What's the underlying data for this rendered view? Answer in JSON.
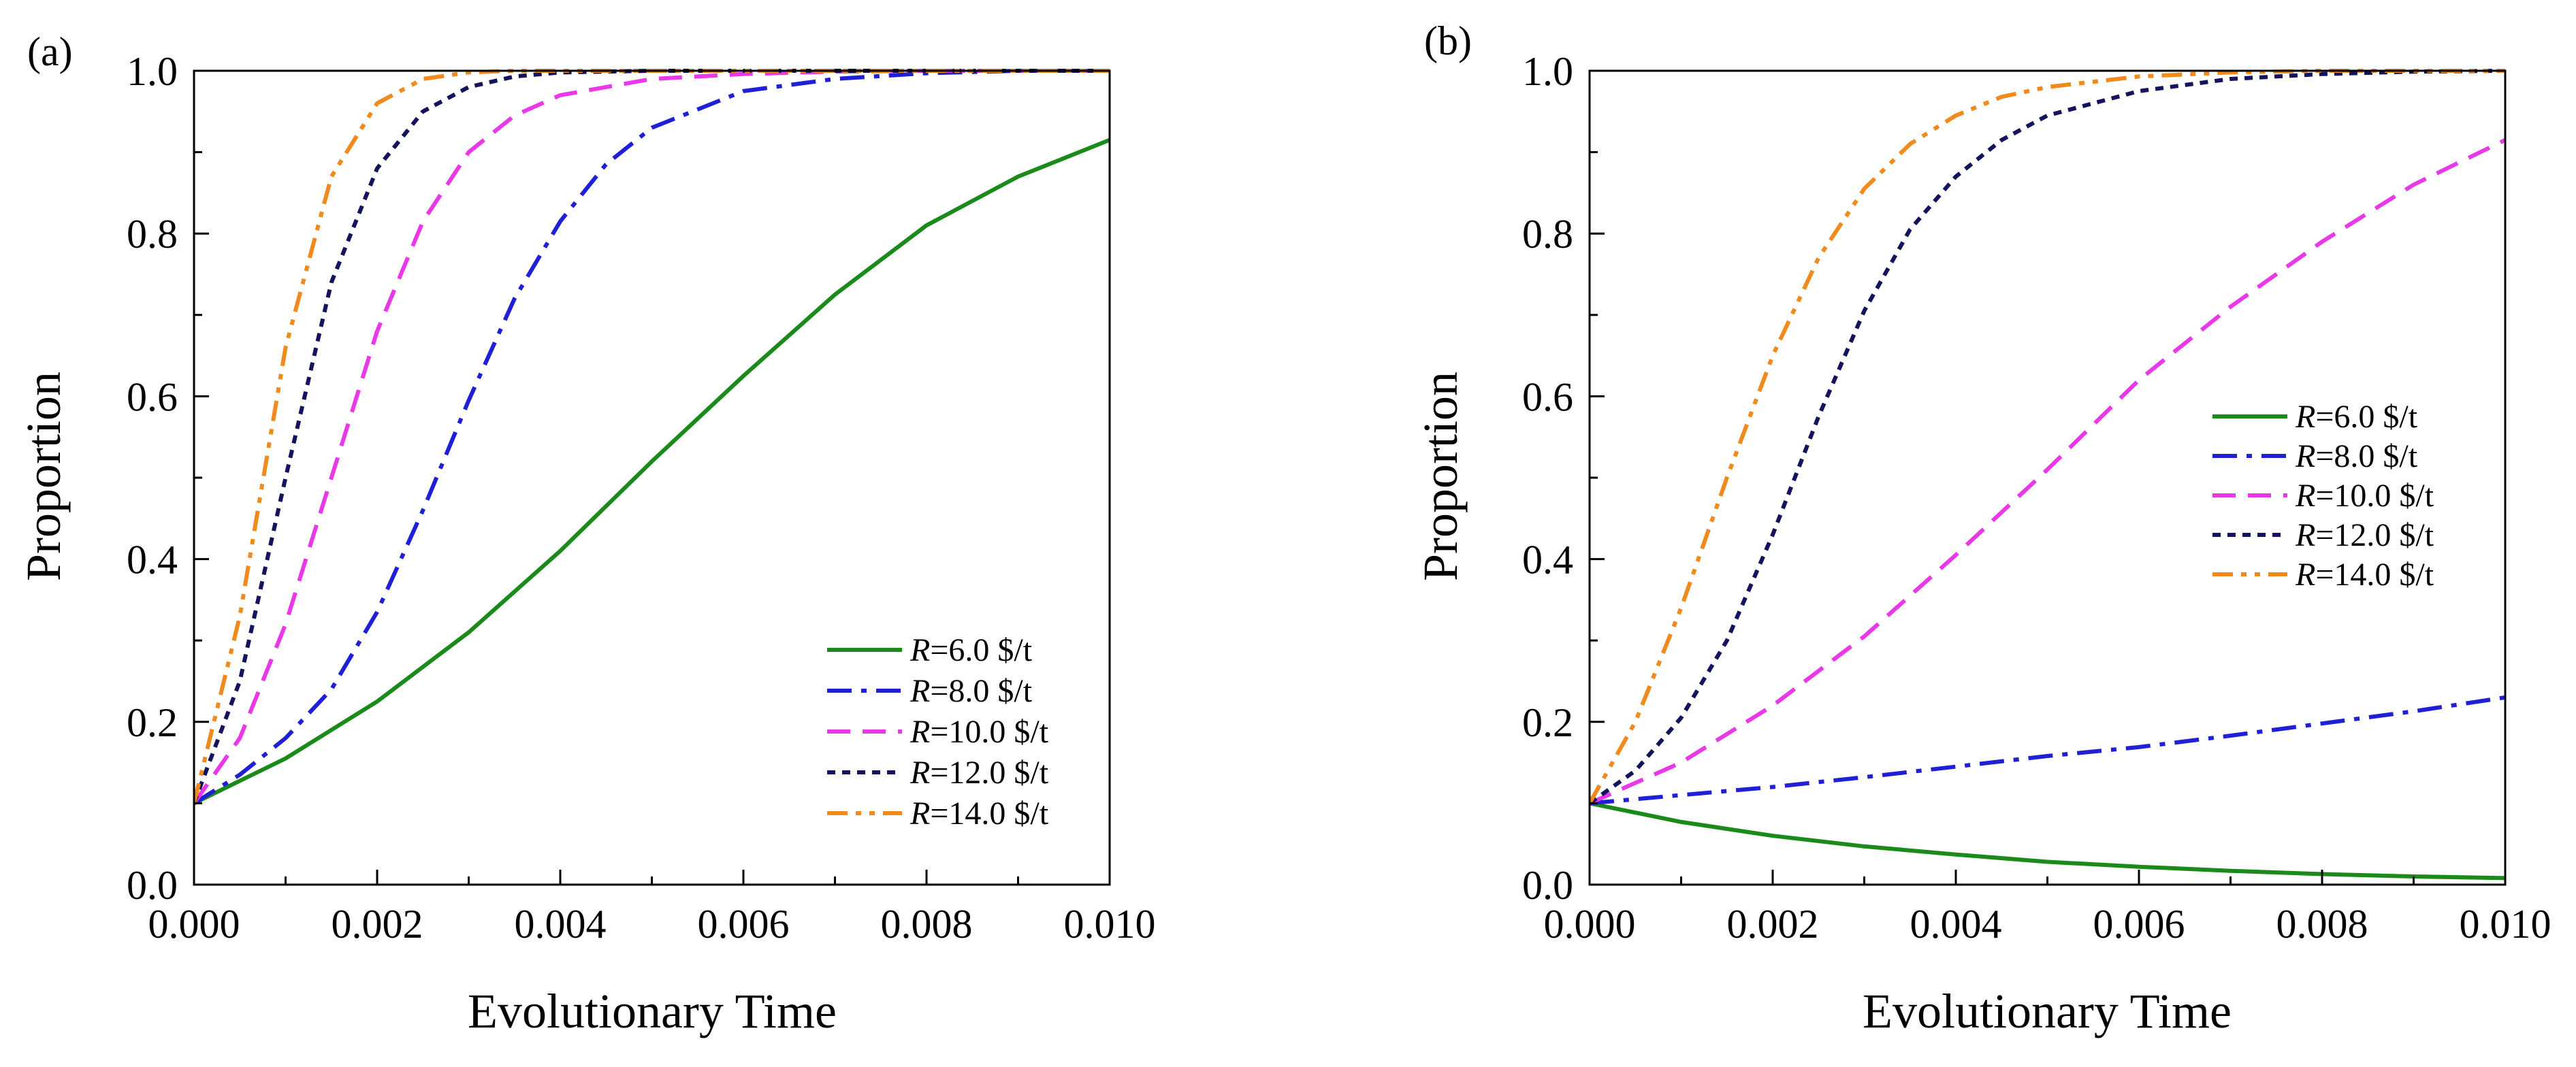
{
  "chart_data": [
    {
      "type": "line",
      "panel_label": "(a)",
      "xlabel": "Evolutionary Time",
      "ylabel": "Proportion",
      "xlim": [
        0,
        0.01
      ],
      "ylim": [
        0,
        1.0
      ],
      "xticks": [
        0,
        0.002,
        0.004,
        0.006,
        0.008,
        0.01
      ],
      "xtick_labels": [
        "0.000",
        "0.002",
        "0.004",
        "0.006",
        "0.008",
        "0.010"
      ],
      "yticks": [
        0,
        0.2,
        0.4,
        0.6,
        0.8,
        1.0
      ],
      "ytick_labels": [
        "0.0",
        "0.2",
        "0.4",
        "0.6",
        "0.8",
        "1.0"
      ],
      "grid": false,
      "legend_position": "bottom-right",
      "series": [
        {
          "name": "R=6.0 $/t",
          "label_var": "R",
          "label_rest": "=6.0  $/t",
          "color": "#1a8a1a",
          "dash": "solid",
          "x": [
            0,
            0.001,
            0.002,
            0.003,
            0.004,
            0.005,
            0.006,
            0.007,
            0.008,
            0.009,
            0.01
          ],
          "y": [
            0.1,
            0.155,
            0.225,
            0.31,
            0.41,
            0.52,
            0.625,
            0.725,
            0.81,
            0.87,
            0.915
          ]
        },
        {
          "name": "R=8.0 $/t",
          "label_var": "R",
          "label_rest": "=8.0  $/t",
          "color": "#1f1fd6",
          "dash": "dashdot",
          "x": [
            0,
            0.0005,
            0.001,
            0.0015,
            0.002,
            0.0025,
            0.003,
            0.0035,
            0.004,
            0.0045,
            0.005,
            0.006,
            0.007,
            0.008,
            0.009,
            0.01
          ],
          "y": [
            0.1,
            0.135,
            0.18,
            0.24,
            0.335,
            0.46,
            0.595,
            0.72,
            0.815,
            0.885,
            0.93,
            0.975,
            0.99,
            0.997,
            1.0,
            1.0
          ]
        },
        {
          "name": "R=10.0 $/t",
          "label_var": "R",
          "label_rest": "=10.0  $/t",
          "color": "#e838e8",
          "dash": "dashed",
          "x": [
            0,
            0.0005,
            0.001,
            0.0015,
            0.002,
            0.0025,
            0.003,
            0.0035,
            0.004,
            0.005,
            0.006,
            0.007,
            0.008,
            0.01
          ],
          "y": [
            0.1,
            0.18,
            0.32,
            0.5,
            0.68,
            0.815,
            0.9,
            0.945,
            0.97,
            0.99,
            0.996,
            0.999,
            1.0,
            1.0
          ]
        },
        {
          "name": "R=12.0 $/t",
          "label_var": "R",
          "label_rest": "=12.0  $/t",
          "color": "#14145e",
          "dash": "dotted",
          "x": [
            0,
            0.0005,
            0.001,
            0.0015,
            0.002,
            0.0025,
            0.003,
            0.0035,
            0.004,
            0.005,
            0.01
          ],
          "y": [
            0.1,
            0.25,
            0.5,
            0.74,
            0.88,
            0.95,
            0.98,
            0.993,
            0.998,
            1.0,
            1.0
          ]
        },
        {
          "name": "R=14.0 $/t",
          "label_var": "R",
          "label_rest": "=14.0  $/t",
          "color": "#f08a1c",
          "dash": "dashdotdot",
          "x": [
            0,
            0.0005,
            0.001,
            0.0015,
            0.002,
            0.0025,
            0.003,
            0.0035,
            0.01
          ],
          "y": [
            0.1,
            0.33,
            0.66,
            0.87,
            0.96,
            0.99,
            0.998,
            1.0,
            1.0
          ]
        }
      ]
    },
    {
      "type": "line",
      "panel_label": "(b)",
      "xlabel": "Evolutionary Time",
      "ylabel": "Proportion",
      "xlim": [
        0,
        0.01
      ],
      "ylim": [
        0,
        1.0
      ],
      "xticks": [
        0,
        0.002,
        0.004,
        0.006,
        0.008,
        0.01
      ],
      "xtick_labels": [
        "0.000",
        "0.002",
        "0.004",
        "0.006",
        "0.008",
        "0.010"
      ],
      "yticks": [
        0,
        0.2,
        0.4,
        0.6,
        0.8,
        1.0
      ],
      "ytick_labels": [
        "0.0",
        "0.2",
        "0.4",
        "0.6",
        "0.8",
        "1.0"
      ],
      "grid": false,
      "legend_position": "right",
      "series": [
        {
          "name": "R=6.0 $/t",
          "label_var": "R",
          "label_rest": "=6.0  $/t",
          "color": "#1a8a1a",
          "dash": "solid",
          "x": [
            0,
            0.001,
            0.002,
            0.003,
            0.004,
            0.005,
            0.006,
            0.007,
            0.008,
            0.009,
            0.01
          ],
          "y": [
            0.1,
            0.077,
            0.06,
            0.047,
            0.037,
            0.028,
            0.022,
            0.017,
            0.013,
            0.01,
            0.008
          ]
        },
        {
          "name": "R=8.0 $/t",
          "label_var": "R",
          "label_rest": "=8.0  $/t",
          "color": "#1f1fd6",
          "dash": "dashdot",
          "x": [
            0,
            0.001,
            0.002,
            0.003,
            0.004,
            0.005,
            0.006,
            0.007,
            0.008,
            0.009,
            0.01
          ],
          "y": [
            0.1,
            0.11,
            0.12,
            0.132,
            0.145,
            0.158,
            0.169,
            0.183,
            0.198,
            0.213,
            0.23
          ]
        },
        {
          "name": "R=10.0 $/t",
          "label_var": "R",
          "label_rest": "=10.0  $/t",
          "color": "#e838e8",
          "dash": "dashed",
          "x": [
            0,
            0.001,
            0.002,
            0.003,
            0.004,
            0.005,
            0.006,
            0.007,
            0.008,
            0.009,
            0.01
          ],
          "y": [
            0.1,
            0.15,
            0.22,
            0.305,
            0.405,
            0.51,
            0.62,
            0.71,
            0.79,
            0.86,
            0.915
          ]
        },
        {
          "name": "R=12.0 $/t",
          "label_var": "R",
          "label_rest": "=12.0  $/t",
          "color": "#14145e",
          "dash": "dotted",
          "x": [
            0,
            0.0005,
            0.001,
            0.0015,
            0.002,
            0.0025,
            0.003,
            0.0035,
            0.004,
            0.0045,
            0.005,
            0.006,
            0.007,
            0.008,
            0.009,
            0.01
          ],
          "y": [
            0.1,
            0.14,
            0.205,
            0.3,
            0.43,
            0.575,
            0.705,
            0.805,
            0.87,
            0.915,
            0.945,
            0.975,
            0.99,
            0.996,
            0.999,
            1.0
          ]
        },
        {
          "name": "R=14.0 $/t",
          "label_var": "R",
          "label_rest": "=14.0  $/t",
          "color": "#f08a1c",
          "dash": "dashdotdot",
          "x": [
            0,
            0.0005,
            0.001,
            0.0015,
            0.002,
            0.0025,
            0.003,
            0.0035,
            0.004,
            0.0045,
            0.005,
            0.006,
            0.007,
            0.008,
            0.01
          ],
          "y": [
            0.1,
            0.2,
            0.34,
            0.5,
            0.65,
            0.77,
            0.855,
            0.91,
            0.945,
            0.968,
            0.98,
            0.993,
            0.998,
            1.0,
            1.0
          ]
        }
      ]
    }
  ]
}
